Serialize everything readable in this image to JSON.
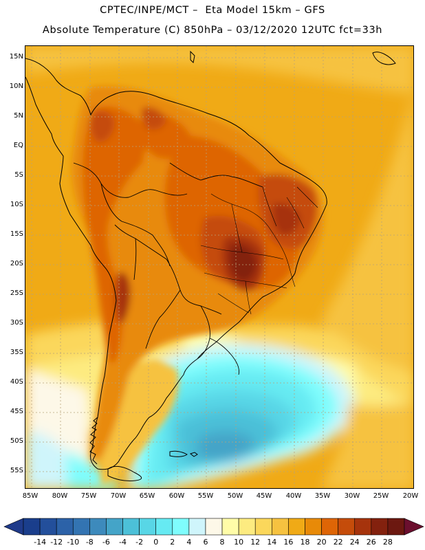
{
  "header": {
    "title_line1": "CPTEC/INPE/MCT –  Eta Model 15km – GFS",
    "title_line2": "Absolute Temperature (C) 850hPa – 03/12/2020 12UTC fct=33h"
  },
  "map": {
    "lat_labels": [
      "15N",
      "10N",
      "5N",
      "EQ",
      "5S",
      "10S",
      "15S",
      "20S",
      "25S",
      "30S",
      "35S",
      "40S",
      "45S",
      "50S",
      "55S"
    ],
    "lon_labels": [
      "85W",
      "80W",
      "75W",
      "70W",
      "65W",
      "60W",
      "55W",
      "50W",
      "45W",
      "40W",
      "35W",
      "30W",
      "25W",
      "20W"
    ],
    "features": [
      "temperature-field",
      "coastlines",
      "country-borders",
      "state-borders",
      "graticule"
    ]
  },
  "legend": {
    "values": [
      "-14",
      "-12",
      "-10",
      "-8",
      "-6",
      "-4",
      "-2",
      "0",
      "2",
      "4",
      "6",
      "8",
      "10",
      "12",
      "14",
      "16",
      "18",
      "20",
      "22",
      "24",
      "26",
      "28"
    ],
    "colors": [
      "#1a3e8c",
      "#234f9b",
      "#2c62a8",
      "#3374b2",
      "#3d8abc",
      "#44a4c8",
      "#4cc0d8",
      "#58d6e6",
      "#66eaf2",
      "#7ffdfd",
      "#cff5fb",
      "#fdf8e8",
      "#fffca8",
      "#fdeb80",
      "#fbd75b",
      "#f6c240",
      "#f0aa16",
      "#e88a08",
      "#de6506",
      "#c54c0a",
      "#a6330c",
      "#83210e",
      "#6c1810"
    ],
    "arrow_low_color": "#1f3a8a",
    "arrow_high_color": "#6b0f2e"
  }
}
